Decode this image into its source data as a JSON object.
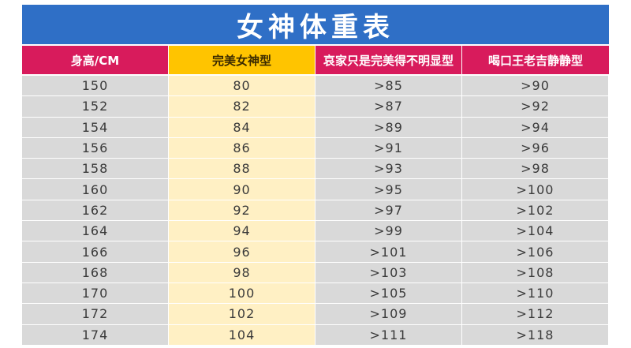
{
  "title": "女神体重表",
  "headers": [
    "身高/CM",
    "完美女神型",
    "哀家只是完美得不明显型",
    "喝口王老吉静静型"
  ],
  "rows": [
    [
      "150",
      "80",
      ">85",
      ">90"
    ],
    [
      "152",
      "82",
      ">87",
      ">92"
    ],
    [
      "154",
      "84",
      ">89",
      ">94"
    ],
    [
      "156",
      "86",
      ">91",
      ">96"
    ],
    [
      "158",
      "88",
      ">93",
      ">98"
    ],
    [
      "160",
      "90",
      ">95",
      ">100"
    ],
    [
      "162",
      "92",
      ">97",
      ">102"
    ],
    [
      "164",
      "94",
      ">99",
      ">104"
    ],
    [
      "166",
      "96",
      ">101",
      ">106"
    ],
    [
      "168",
      "98",
      ">103",
      ">108"
    ],
    [
      "170",
      "100",
      ">105",
      ">110"
    ],
    [
      "172",
      "102",
      ">109",
      ">112"
    ],
    [
      "174",
      "104",
      ">111",
      ">118"
    ]
  ],
  "colors": {
    "title_bg": "#2f6fc6",
    "header_pink": "#d81b5c",
    "header_yellow": "#ffc400",
    "cell_grey": "#d9d9d9",
    "cell_cream": "#fff0c4"
  }
}
